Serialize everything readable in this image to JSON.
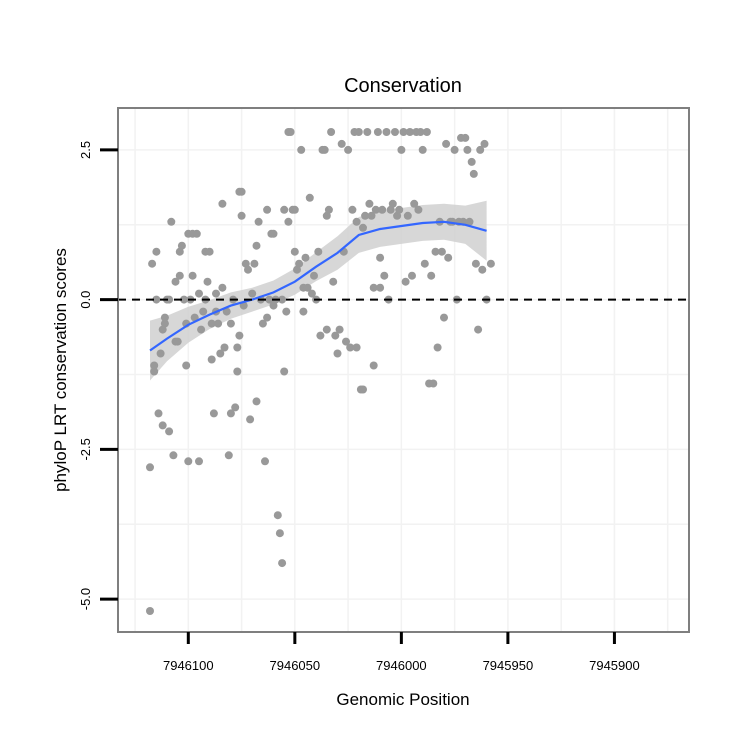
{
  "chart_data": {
    "type": "scatter",
    "title": "Conservation",
    "xlabel": "Genomic Position",
    "ylabel": "phyloP LRT conservation scores",
    "x_reversed": true,
    "xlim": [
      7946133,
      7945865
    ],
    "ylim": [
      -5.55,
      3.2
    ],
    "xticks": [
      7946100,
      7946050,
      7946000,
      7945950,
      7945900
    ],
    "xtick_labels": [
      "7946100",
      "7946050",
      "7946000",
      "7945950",
      "7945900"
    ],
    "yticks": [
      2.5,
      0.0,
      -2.5,
      -5.0
    ],
    "ytick_labels": [
      "2.5",
      "0.0",
      "-2.5",
      "-5.0"
    ],
    "reference_line": {
      "y": 0,
      "style": "dashed",
      "color": "#000000"
    },
    "grid": true,
    "colors": {
      "points": "#999999",
      "smooth": "#3366ff",
      "band": "#d0d0d0",
      "panel_border": "#7f7f7f",
      "grid": "#f2f2f2"
    },
    "series": [
      {
        "name": "scores",
        "points": [
          [
            7946118,
            -5.2
          ],
          [
            7946118,
            -2.8
          ],
          [
            7946117,
            0.6
          ],
          [
            7946116,
            -1.2
          ],
          [
            7946116,
            -1.1
          ],
          [
            7946115,
            0.8
          ],
          [
            7946115,
            0.0
          ],
          [
            7946114,
            -1.9
          ],
          [
            7946113,
            -0.9
          ],
          [
            7946112,
            -2.1
          ],
          [
            7946112,
            -0.5
          ],
          [
            7946111,
            -0.4
          ],
          [
            7946111,
            -0.3
          ],
          [
            7946110,
            0.0
          ],
          [
            7946109,
            -2.2
          ],
          [
            7946109,
            0.0
          ],
          [
            7946108,
            1.3
          ],
          [
            7946107,
            -2.6
          ],
          [
            7946106,
            -0.7
          ],
          [
            7946106,
            0.3
          ],
          [
            7946105,
            -0.7
          ],
          [
            7946104,
            0.8
          ],
          [
            7946104,
            0.4
          ],
          [
            7946103,
            0.9
          ],
          [
            7946102,
            0.0
          ],
          [
            7946101,
            -1.1
          ],
          [
            7946101,
            -0.4
          ],
          [
            7946100,
            -2.7
          ],
          [
            7946100,
            1.1
          ],
          [
            7946099,
            0.0
          ],
          [
            7946098,
            0.4
          ],
          [
            7946098,
            1.1
          ],
          [
            7946097,
            -0.3
          ],
          [
            7946096,
            1.1
          ],
          [
            7946095,
            -2.7
          ],
          [
            7946095,
            0.1
          ],
          [
            7946094,
            -0.5
          ],
          [
            7946093,
            -0.2
          ],
          [
            7946092,
            0.0
          ],
          [
            7946092,
            0.8
          ],
          [
            7946091,
            0.3
          ],
          [
            7946090,
            0.8
          ],
          [
            7946089,
            -1.0
          ],
          [
            7946089,
            -0.4
          ],
          [
            7946088,
            -1.9
          ],
          [
            7946087,
            0.1
          ],
          [
            7946087,
            -0.2
          ],
          [
            7946086,
            -0.4
          ],
          [
            7946085,
            -0.9
          ],
          [
            7946084,
            1.6
          ],
          [
            7946084,
            0.2
          ],
          [
            7946083,
            -0.8
          ],
          [
            7946082,
            -0.2
          ],
          [
            7946081,
            -2.6
          ],
          [
            7946080,
            -1.9
          ],
          [
            7946080,
            -0.4
          ],
          [
            7946079,
            0.0
          ],
          [
            7946078,
            -1.8
          ],
          [
            7946077,
            -1.2
          ],
          [
            7946077,
            -0.8
          ],
          [
            7946076,
            1.8
          ],
          [
            7946076,
            -0.6
          ],
          [
            7946075,
            1.4
          ],
          [
            7946075,
            1.8
          ],
          [
            7946074,
            -0.1
          ],
          [
            7946073,
            0.6
          ],
          [
            7946072,
            0.5
          ],
          [
            7946071,
            -2.0
          ],
          [
            7946070,
            0.1
          ],
          [
            7946069,
            0.6
          ],
          [
            7946068,
            -1.7
          ],
          [
            7946068,
            0.9
          ],
          [
            7946067,
            1.3
          ],
          [
            7946066,
            0.0
          ],
          [
            7946065,
            -0.4
          ],
          [
            7946064,
            -2.7
          ],
          [
            7946063,
            1.5
          ],
          [
            7946063,
            -0.3
          ],
          [
            7946062,
            0.0
          ],
          [
            7946061,
            1.1
          ],
          [
            7946060,
            -0.1
          ],
          [
            7946060,
            1.1
          ],
          [
            7946059,
            0.0
          ],
          [
            7946058,
            -3.6
          ],
          [
            7946057,
            -3.9
          ],
          [
            7946056,
            -4.4
          ],
          [
            7946056,
            0.0
          ],
          [
            7946055,
            -1.2
          ],
          [
            7946055,
            1.5
          ],
          [
            7946054,
            -0.2
          ],
          [
            7946053,
            2.8
          ],
          [
            7946053,
            1.3
          ],
          [
            7946052,
            2.8
          ],
          [
            7946051,
            1.5
          ],
          [
            7946050,
            0.8
          ],
          [
            7946050,
            1.5
          ],
          [
            7946049,
            0.5
          ],
          [
            7946048,
            0.6
          ],
          [
            7946047,
            2.5
          ],
          [
            7946046,
            0.2
          ],
          [
            7946046,
            -0.2
          ],
          [
            7946045,
            0.7
          ],
          [
            7946044,
            0.2
          ],
          [
            7946043,
            1.7
          ],
          [
            7946042,
            0.1
          ],
          [
            7946041,
            0.4
          ],
          [
            7946040,
            0.0
          ],
          [
            7946039,
            0.8
          ],
          [
            7946038,
            -0.6
          ],
          [
            7946037,
            2.5
          ],
          [
            7946036,
            2.5
          ],
          [
            7946035,
            1.4
          ],
          [
            7946035,
            -0.5
          ],
          [
            7946034,
            1.5
          ],
          [
            7946033,
            2.8
          ],
          [
            7946032,
            0.3
          ],
          [
            7946031,
            -0.6
          ],
          [
            7946030,
            -0.9
          ],
          [
            7946029,
            -0.5
          ],
          [
            7946028,
            2.6
          ],
          [
            7946027,
            0.8
          ],
          [
            7946026,
            -0.7
          ],
          [
            7946025,
            2.5
          ],
          [
            7946024,
            -0.8
          ],
          [
            7946023,
            1.5
          ],
          [
            7946022,
            2.8
          ],
          [
            7946021,
            -0.8
          ],
          [
            7946021,
            1.3
          ],
          [
            7946020,
            2.8
          ],
          [
            7946019,
            -1.5
          ],
          [
            7946018,
            -1.5
          ],
          [
            7946018,
            1.2
          ],
          [
            7946017,
            1.4
          ],
          [
            7946016,
            2.8
          ],
          [
            7946015,
            1.6
          ],
          [
            7946014,
            1.4
          ],
          [
            7946013,
            -1.1
          ],
          [
            7946013,
            0.2
          ],
          [
            7946012,
            1.5
          ],
          [
            7946011,
            2.8
          ],
          [
            7946010,
            0.2
          ],
          [
            7946010,
            0.7
          ],
          [
            7946009,
            1.5
          ],
          [
            7946008,
            0.4
          ],
          [
            7946007,
            2.8
          ],
          [
            7946006,
            0.0
          ],
          [
            7946005,
            1.5
          ],
          [
            7946004,
            1.6
          ],
          [
            7946003,
            2.8
          ],
          [
            7946002,
            1.4
          ],
          [
            7946001,
            1.5
          ],
          [
            7946000,
            2.5
          ],
          [
            7945999,
            2.8
          ],
          [
            7945998,
            0.3
          ],
          [
            7945997,
            1.4
          ],
          [
            7945996,
            2.8
          ],
          [
            7945995,
            0.4
          ],
          [
            7945994,
            1.6
          ],
          [
            7945993,
            2.8
          ],
          [
            7945992,
            1.5
          ],
          [
            7945991,
            2.8
          ],
          [
            7945990,
            2.5
          ],
          [
            7945989,
            0.6
          ],
          [
            7945988,
            2.8
          ],
          [
            7945987,
            -1.4
          ],
          [
            7945986,
            0.4
          ],
          [
            7945985,
            -1.4
          ],
          [
            7945984,
            0.8
          ],
          [
            7945983,
            -0.8
          ],
          [
            7945982,
            1.3
          ],
          [
            7945981,
            0.8
          ],
          [
            7945980,
            -0.3
          ],
          [
            7945979,
            2.6
          ],
          [
            7945978,
            0.7
          ],
          [
            7945977,
            1.3
          ],
          [
            7945976,
            1.3
          ],
          [
            7945975,
            2.5
          ],
          [
            7945974,
            0.0
          ],
          [
            7945973,
            1.3
          ],
          [
            7945972,
            2.7
          ],
          [
            7945971,
            1.3
          ],
          [
            7945970,
            2.7
          ],
          [
            7945969,
            2.5
          ],
          [
            7945968,
            1.3
          ],
          [
            7945967,
            2.3
          ],
          [
            7945966,
            2.1
          ],
          [
            7945965,
            0.6
          ],
          [
            7945964,
            -0.5
          ],
          [
            7945963,
            2.5
          ],
          [
            7945962,
            0.5
          ],
          [
            7945961,
            2.6
          ],
          [
            7945960,
            0.0
          ],
          [
            7945958,
            0.6
          ]
        ]
      }
    ],
    "smooth": {
      "x": [
        7946118,
        7946110,
        7946100,
        7946090,
        7946080,
        7946070,
        7946060,
        7946050,
        7946040,
        7946030,
        7946020,
        7946010,
        7946000,
        7945990,
        7945980,
        7945970,
        7945960
      ],
      "y": [
        -0.85,
        -0.65,
        -0.42,
        -0.25,
        -0.1,
        0.0,
        0.12,
        0.3,
        0.55,
        0.78,
        1.08,
        1.18,
        1.23,
        1.28,
        1.3,
        1.25,
        1.15
      ],
      "se": [
        0.5,
        0.38,
        0.3,
        0.24,
        0.22,
        0.2,
        0.2,
        0.22,
        0.24,
        0.28,
        0.3,
        0.3,
        0.3,
        0.3,
        0.3,
        0.32,
        0.5
      ]
    }
  }
}
